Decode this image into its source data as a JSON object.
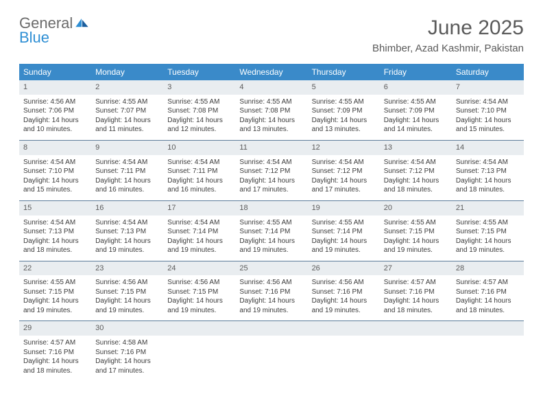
{
  "brand": {
    "general": "General",
    "blue": "Blue"
  },
  "title": "June 2025",
  "location": "Bhimber, Azad Kashmir, Pakistan",
  "colors": {
    "header_bg": "#3a8ac9",
    "header_text": "#ffffff",
    "daynum_bg": "#e9edf0",
    "border": "#5c7c9a",
    "text": "#3b3b3b",
    "title_text": "#5a5a5a",
    "logo_blue": "#2f8fd4"
  },
  "weekdays": [
    "Sunday",
    "Monday",
    "Tuesday",
    "Wednesday",
    "Thursday",
    "Friday",
    "Saturday"
  ],
  "weeks": [
    [
      {
        "n": 1,
        "sr": "4:56 AM",
        "ss": "7:06 PM",
        "dl": "14 hours and 10 minutes."
      },
      {
        "n": 2,
        "sr": "4:55 AM",
        "ss": "7:07 PM",
        "dl": "14 hours and 11 minutes."
      },
      {
        "n": 3,
        "sr": "4:55 AM",
        "ss": "7:08 PM",
        "dl": "14 hours and 12 minutes."
      },
      {
        "n": 4,
        "sr": "4:55 AM",
        "ss": "7:08 PM",
        "dl": "14 hours and 13 minutes."
      },
      {
        "n": 5,
        "sr": "4:55 AM",
        "ss": "7:09 PM",
        "dl": "14 hours and 13 minutes."
      },
      {
        "n": 6,
        "sr": "4:55 AM",
        "ss": "7:09 PM",
        "dl": "14 hours and 14 minutes."
      },
      {
        "n": 7,
        "sr": "4:54 AM",
        "ss": "7:10 PM",
        "dl": "14 hours and 15 minutes."
      }
    ],
    [
      {
        "n": 8,
        "sr": "4:54 AM",
        "ss": "7:10 PM",
        "dl": "14 hours and 15 minutes."
      },
      {
        "n": 9,
        "sr": "4:54 AM",
        "ss": "7:11 PM",
        "dl": "14 hours and 16 minutes."
      },
      {
        "n": 10,
        "sr": "4:54 AM",
        "ss": "7:11 PM",
        "dl": "14 hours and 16 minutes."
      },
      {
        "n": 11,
        "sr": "4:54 AM",
        "ss": "7:12 PM",
        "dl": "14 hours and 17 minutes."
      },
      {
        "n": 12,
        "sr": "4:54 AM",
        "ss": "7:12 PM",
        "dl": "14 hours and 17 minutes."
      },
      {
        "n": 13,
        "sr": "4:54 AM",
        "ss": "7:12 PM",
        "dl": "14 hours and 18 minutes."
      },
      {
        "n": 14,
        "sr": "4:54 AM",
        "ss": "7:13 PM",
        "dl": "14 hours and 18 minutes."
      }
    ],
    [
      {
        "n": 15,
        "sr": "4:54 AM",
        "ss": "7:13 PM",
        "dl": "14 hours and 18 minutes."
      },
      {
        "n": 16,
        "sr": "4:54 AM",
        "ss": "7:13 PM",
        "dl": "14 hours and 19 minutes."
      },
      {
        "n": 17,
        "sr": "4:54 AM",
        "ss": "7:14 PM",
        "dl": "14 hours and 19 minutes."
      },
      {
        "n": 18,
        "sr": "4:55 AM",
        "ss": "7:14 PM",
        "dl": "14 hours and 19 minutes."
      },
      {
        "n": 19,
        "sr": "4:55 AM",
        "ss": "7:14 PM",
        "dl": "14 hours and 19 minutes."
      },
      {
        "n": 20,
        "sr": "4:55 AM",
        "ss": "7:15 PM",
        "dl": "14 hours and 19 minutes."
      },
      {
        "n": 21,
        "sr": "4:55 AM",
        "ss": "7:15 PM",
        "dl": "14 hours and 19 minutes."
      }
    ],
    [
      {
        "n": 22,
        "sr": "4:55 AM",
        "ss": "7:15 PM",
        "dl": "14 hours and 19 minutes."
      },
      {
        "n": 23,
        "sr": "4:56 AM",
        "ss": "7:15 PM",
        "dl": "14 hours and 19 minutes."
      },
      {
        "n": 24,
        "sr": "4:56 AM",
        "ss": "7:15 PM",
        "dl": "14 hours and 19 minutes."
      },
      {
        "n": 25,
        "sr": "4:56 AM",
        "ss": "7:16 PM",
        "dl": "14 hours and 19 minutes."
      },
      {
        "n": 26,
        "sr": "4:56 AM",
        "ss": "7:16 PM",
        "dl": "14 hours and 19 minutes."
      },
      {
        "n": 27,
        "sr": "4:57 AM",
        "ss": "7:16 PM",
        "dl": "14 hours and 18 minutes."
      },
      {
        "n": 28,
        "sr": "4:57 AM",
        "ss": "7:16 PM",
        "dl": "14 hours and 18 minutes."
      }
    ],
    [
      {
        "n": 29,
        "sr": "4:57 AM",
        "ss": "7:16 PM",
        "dl": "14 hours and 18 minutes."
      },
      {
        "n": 30,
        "sr": "4:58 AM",
        "ss": "7:16 PM",
        "dl": "14 hours and 17 minutes."
      },
      null,
      null,
      null,
      null,
      null
    ]
  ],
  "labels": {
    "sunrise": "Sunrise: ",
    "sunset": "Sunset: ",
    "daylight": "Daylight: "
  }
}
